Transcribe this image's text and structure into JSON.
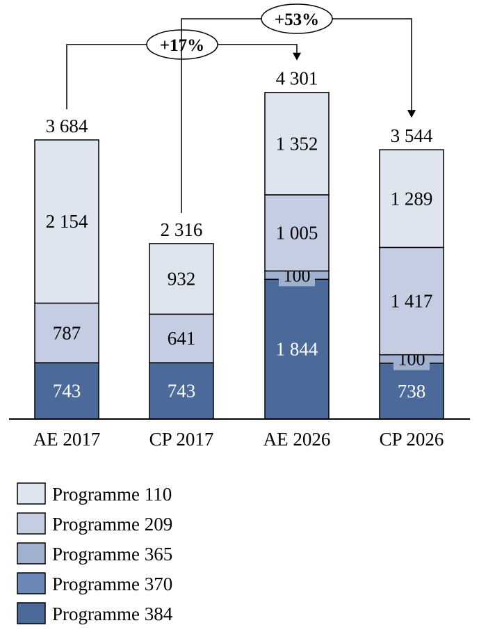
{
  "chart_data": {
    "type": "bar",
    "stacked": true,
    "categories": [
      "AE 2017",
      "CP 2017",
      "AE 2026",
      "CP 2026"
    ],
    "totals": [
      "3 684",
      "2 316",
      "4 301",
      "3 544"
    ],
    "series": [
      {
        "name": "Programme 384",
        "color": "#4b6a9a",
        "values": [
          743,
          743,
          1844,
          738
        ],
        "labels": [
          "743",
          "743",
          "1 844",
          "738"
        ],
        "label_color": "#ffffff"
      },
      {
        "name": "Programme 370",
        "color": "#6a87b5",
        "values": [
          0,
          0,
          0,
          0
        ],
        "labels": [
          "",
          "",
          "",
          ""
        ],
        "label_color": "#000000"
      },
      {
        "name": "Programme 365",
        "color": "#9fb1cf",
        "values": [
          0,
          0,
          100,
          100
        ],
        "labels": [
          "",
          "",
          "100",
          "100"
        ],
        "label_color": "#000000"
      },
      {
        "name": "Programme 209",
        "color": "#c4cde2",
        "values": [
          787,
          641,
          1005,
          1417
        ],
        "labels": [
          "787",
          "641",
          "1 005",
          "1 417"
        ],
        "label_color": "#000000"
      },
      {
        "name": "Programme 110",
        "color": "#dfe5ef",
        "values": [
          2154,
          932,
          1352,
          1289
        ],
        "labels": [
          "2 154",
          "932",
          "1 352",
          "1 289"
        ],
        "label_color": "#000000"
      }
    ],
    "legend_order": [
      "Programme 110",
      "Programme 209",
      "Programme 365",
      "Programme 370",
      "Programme 384"
    ],
    "annotations": [
      {
        "text": "+17%",
        "from": "AE 2017",
        "to": "AE 2026"
      },
      {
        "text": "+53%",
        "from": "CP 2017",
        "to": "CP 2026"
      }
    ],
    "ylim": [
      0,
      4400
    ],
    "grid": false,
    "legend_position": "bottom-left"
  }
}
